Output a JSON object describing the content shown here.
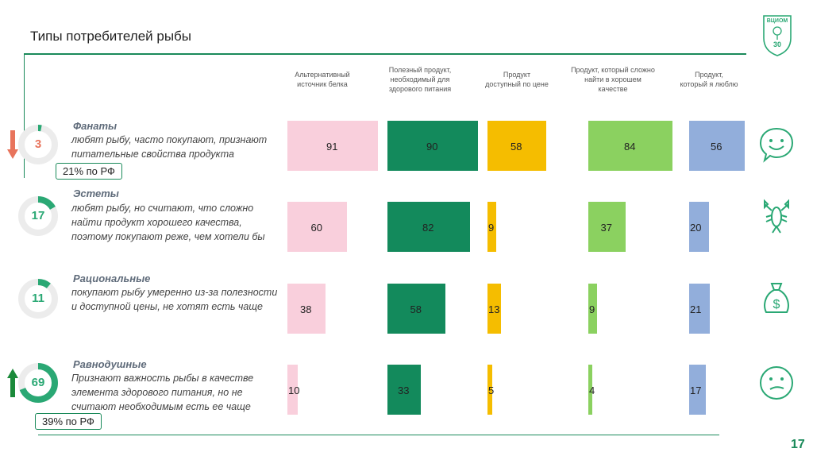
{
  "page": {
    "title": "Типы потребителей рыбы",
    "page_number": "17"
  },
  "logo": {
    "text": "ВЦИОМ",
    "years": "30",
    "icon": "vciom-logo-icon"
  },
  "chart_data": {
    "type": "bar",
    "columns": [
      "Альтернативный\nисточник белка",
      "Полезный продукт,\nнеобходимый для\nздорового питания",
      "Продукт\nдоступный по цене",
      "Продукт, который сложно\nнайти в хорошем\nкачестве",
      "Продукт,\nкоторый я люблю"
    ],
    "column_colors": [
      "#f9cfdc",
      "#138a5c",
      "#f5bd00",
      "#8bd160",
      "#92aedb"
    ],
    "rows": [
      "Фанаты",
      "Эстеты",
      "Рациональные",
      "Равнодушные"
    ],
    "series": [
      {
        "values": [
          91,
          90,
          58,
          84,
          56
        ]
      },
      {
        "values": [
          60,
          82,
          9,
          37,
          20
        ]
      },
      {
        "values": [
          38,
          58,
          13,
          9,
          21
        ]
      },
      {
        "values": [
          10,
          33,
          5,
          4,
          17
        ]
      }
    ]
  },
  "segments": [
    {
      "name": "Фанаты",
      "description": "любят рыбу, часто покупают, признают питательные свойства продукта",
      "share": "3",
      "share_pct": 3,
      "color": "#e8745c",
      "badge": "21% по РФ",
      "trend": "down",
      "icon": "smile-face-icon"
    },
    {
      "name": "Эстеты",
      "description": "любят рыбу, но считают, что сложно найти продукт хорошего качества, поэтому покупают реже, чем хотели бы",
      "share": "17",
      "share_pct": 17,
      "color": "#2aa874",
      "badge": "",
      "trend": "",
      "icon": "crayfish-icon"
    },
    {
      "name": "Рациональные",
      "description": "покупают рыбу умеренно из-за полезности и доступной цены, не хотят есть чаще",
      "share": "11",
      "share_pct": 11,
      "color": "#2aa874",
      "badge": "",
      "trend": "",
      "icon": "money-bag-icon"
    },
    {
      "name": "Равнодушные",
      "description": "Признают важность рыбы в качестве элемента здорового питания, но не считают необходимым есть ее чаще",
      "share": "69",
      "share_pct": 69,
      "color": "#2aa874",
      "badge": "39% по РФ",
      "trend": "up",
      "icon": "neutral-face-icon"
    }
  ]
}
